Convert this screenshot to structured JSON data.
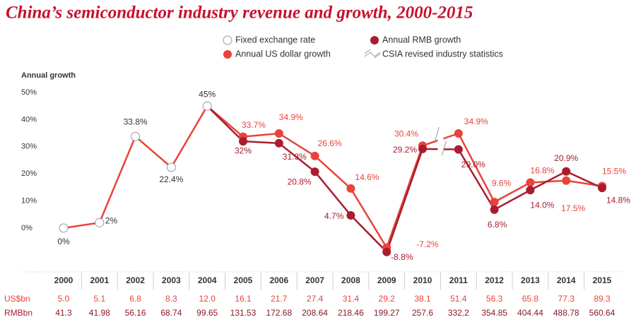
{
  "chart_data": {
    "type": "line",
    "title": "China’s semiconductor industry revenue and growth, 2000-2015",
    "y_label": "Annual growth",
    "categories": [
      "2000",
      "2001",
      "2002",
      "2003",
      "2004",
      "2005",
      "2006",
      "2007",
      "2008",
      "2009",
      "2010",
      "2011",
      "2012",
      "2013",
      "2014",
      "2015"
    ],
    "ylim": [
      -12,
      50
    ],
    "yticks": [
      {
        "value": 0,
        "label": "0%"
      },
      {
        "value": 10,
        "label": "10%"
      },
      {
        "value": 20,
        "label": "20%"
      },
      {
        "value": 30,
        "label": "30%"
      },
      {
        "value": 40,
        "label": "40%"
      },
      {
        "value": 50,
        "label": "50%"
      }
    ],
    "grid": false,
    "series": [
      {
        "name": "Fixed exchange rate",
        "color": "#ffffff",
        "line_color": "#e8443a",
        "values": [
          0,
          2,
          33.8,
          22.4,
          45,
          null,
          null,
          null,
          null,
          null,
          null,
          null,
          null,
          null,
          null,
          null
        ],
        "value_labels": [
          "0%",
          "2%",
          "33.8%",
          "22.4%",
          "45%",
          null,
          null,
          null,
          null,
          null,
          null,
          null,
          null,
          null,
          null,
          null
        ]
      },
      {
        "name": "Annual RMB growth",
        "color": "#a91d2f",
        "values": [
          null,
          null,
          null,
          null,
          null,
          32,
          31.3,
          20.8,
          4.7,
          -8.8,
          29.2,
          29.0,
          6.8,
          14.0,
          20.9,
          14.8
        ],
        "value_labels": [
          null,
          null,
          null,
          null,
          null,
          "32%",
          "31.3%",
          "20.8%",
          "4.7%",
          "-8.8%",
          "29.2%",
          "29.0%",
          "6.8%",
          "14.0%",
          "20.9%",
          "14.8%"
        ]
      },
      {
        "name": "Annual US dollar growth",
        "color": "#e8443a",
        "values": [
          null,
          null,
          null,
          null,
          null,
          33.7,
          34.9,
          26.6,
          14.6,
          -7.2,
          30.4,
          34.9,
          9.6,
          16.8,
          17.5,
          15.5
        ],
        "value_labels": [
          null,
          null,
          null,
          null,
          null,
          "33.7%",
          "34.9%",
          "26.6%",
          "14.6%",
          "-7.2%",
          "30.4%",
          "34.9%",
          "9.6%",
          "16.8%",
          "17.5%",
          "15.5%"
        ]
      }
    ],
    "revision_break": {
      "label": "CSIA revised industry statistics",
      "after": "2010"
    },
    "table": [
      {
        "label": "US$bn",
        "color": "#e8443a",
        "values": [
          "5.0",
          "5.1",
          "6.8",
          "8.3",
          "12.0",
          "16.1",
          "21.7",
          "27.4",
          "31.4",
          "29.2",
          "38.1",
          "51.4",
          "56.3",
          "65.8",
          "77.3",
          "89.3"
        ]
      },
      {
        "label": "RMBbn",
        "color": "#a91d2f",
        "values": [
          "41.3",
          "41.98",
          "56.16",
          "68.74",
          "99.65",
          "131.53",
          "172.68",
          "208.64",
          "218.46",
          "199.27",
          "257.6",
          "332.2",
          "354.85",
          "404.44",
          "488.78",
          "560.64"
        ]
      }
    ]
  }
}
